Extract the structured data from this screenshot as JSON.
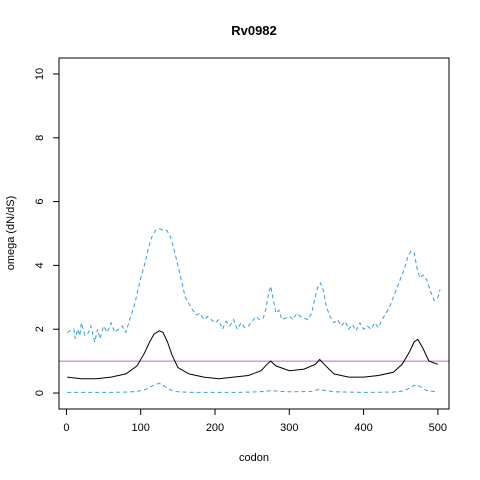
{
  "chart_data": {
    "type": "line",
    "title": "Rv0982",
    "xlabel": "codon",
    "ylabel": "omega (dN/dS)",
    "xlim": [
      -10,
      515
    ],
    "ylim": [
      -0.5,
      10.5
    ],
    "xticks": [
      0,
      100,
      200,
      300,
      400,
      500
    ],
    "yticks": [
      0,
      2,
      4,
      6,
      8,
      10
    ],
    "reference_line": {
      "y": 1,
      "color": "#cc66cc"
    },
    "grid": false,
    "legend": "none",
    "series": [
      {
        "style": "solid",
        "color": "#000000",
        "x": [
          1,
          20,
          40,
          60,
          80,
          95,
          105,
          112,
          118,
          125,
          130,
          136,
          142,
          150,
          165,
          185,
          205,
          225,
          245,
          262,
          270,
          275,
          282,
          300,
          320,
          335,
          341,
          347,
          360,
          380,
          400,
          420,
          440,
          452,
          462,
          468,
          473,
          480,
          488,
          500
        ],
        "y": [
          0.5,
          0.45,
          0.45,
          0.5,
          0.6,
          0.85,
          1.25,
          1.6,
          1.85,
          1.95,
          1.9,
          1.6,
          1.2,
          0.8,
          0.6,
          0.5,
          0.45,
          0.5,
          0.55,
          0.7,
          0.9,
          1.0,
          0.85,
          0.7,
          0.75,
          0.9,
          1.05,
          0.9,
          0.6,
          0.5,
          0.5,
          0.55,
          0.65,
          0.9,
          1.3,
          1.6,
          1.68,
          1.4,
          1.0,
          0.9
        ]
      },
      {
        "style": "dashed",
        "color": "#33a0e0",
        "x": [
          1,
          5,
          10,
          12,
          15,
          18,
          20,
          25,
          30,
          33,
          38,
          42,
          45,
          50,
          55,
          60,
          65,
          70,
          75,
          80,
          85,
          88,
          92,
          96,
          100,
          105,
          110,
          115,
          120,
          125,
          130,
          135,
          140,
          145,
          150,
          155,
          160,
          165,
          170,
          175,
          180,
          185,
          190,
          200,
          205,
          210,
          215,
          220,
          225,
          230,
          235,
          240,
          245,
          250,
          255,
          260,
          265,
          268,
          272,
          275,
          278,
          282,
          286,
          290,
          295,
          300,
          305,
          310,
          315,
          320,
          325,
          330,
          334,
          338,
          342,
          346,
          350,
          355,
          360,
          365,
          370,
          375,
          380,
          385,
          390,
          395,
          400,
          405,
          410,
          415,
          420,
          425,
          430,
          435,
          440,
          445,
          450,
          455,
          460,
          464,
          468,
          472,
          476,
          480,
          485,
          490,
          495,
          500,
          503
        ],
        "y": [
          1.9,
          1.95,
          2.0,
          1.7,
          2.0,
          1.8,
          2.2,
          1.8,
          1.9,
          2.1,
          1.6,
          2.0,
          1.7,
          2.1,
          1.9,
          2.2,
          1.9,
          2.0,
          2.1,
          1.9,
          2.3,
          2.5,
          2.8,
          3.2,
          3.6,
          4.0,
          4.5,
          4.9,
          5.1,
          5.15,
          5.1,
          5.1,
          4.9,
          4.5,
          4.0,
          3.5,
          3.0,
          2.8,
          2.6,
          2.45,
          2.5,
          2.3,
          2.4,
          2.2,
          2.3,
          2.0,
          2.25,
          2.1,
          2.3,
          2.0,
          2.2,
          2.05,
          2.1,
          2.25,
          2.4,
          2.3,
          2.35,
          2.6,
          3.1,
          3.35,
          3.0,
          2.5,
          2.6,
          2.3,
          2.35,
          2.4,
          2.3,
          2.5,
          2.4,
          2.35,
          2.3,
          2.5,
          2.9,
          3.3,
          3.45,
          3.2,
          2.7,
          2.4,
          2.2,
          2.3,
          2.1,
          2.25,
          2.0,
          2.15,
          1.95,
          2.2,
          2.0,
          2.1,
          2.0,
          2.2,
          2.05,
          2.3,
          2.5,
          2.7,
          3.0,
          3.3,
          3.6,
          3.9,
          4.3,
          4.45,
          4.4,
          3.9,
          3.6,
          3.7,
          3.55,
          3.2,
          2.9,
          3.0,
          3.25
        ]
      },
      {
        "style": "dashed",
        "color": "#33a0e0",
        "x": [
          1,
          20,
          40,
          60,
          80,
          95,
          105,
          112,
          118,
          124,
          128,
          133,
          140,
          150,
          170,
          200,
          230,
          260,
          270,
          276,
          282,
          300,
          330,
          338,
          342,
          346,
          360,
          400,
          440,
          455,
          462,
          468,
          472,
          478,
          485,
          500
        ],
        "y": [
          0.02,
          0.02,
          0.02,
          0.02,
          0.03,
          0.05,
          0.1,
          0.18,
          0.25,
          0.3,
          0.28,
          0.2,
          0.1,
          0.04,
          0.02,
          0.02,
          0.02,
          0.04,
          0.06,
          0.08,
          0.06,
          0.04,
          0.05,
          0.1,
          0.12,
          0.09,
          0.04,
          0.02,
          0.03,
          0.07,
          0.16,
          0.24,
          0.25,
          0.18,
          0.08,
          0.03
        ]
      }
    ]
  }
}
